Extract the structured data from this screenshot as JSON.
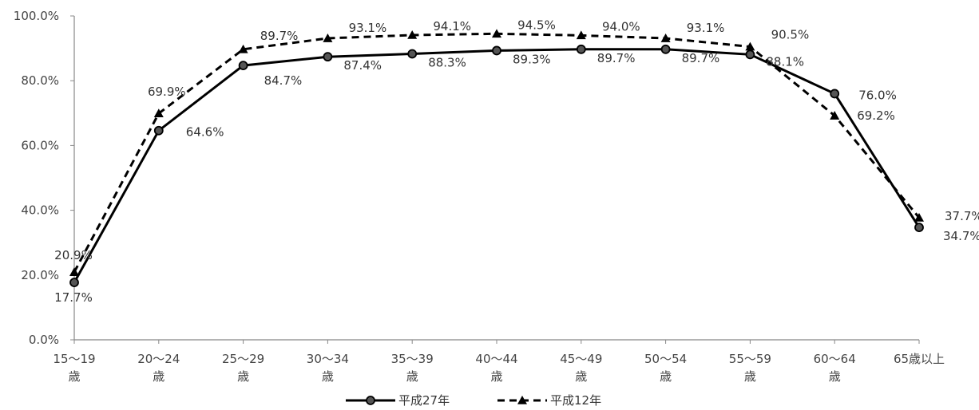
{
  "chart_data": {
    "type": "line",
    "categories": [
      [
        "15〜19",
        "歳"
      ],
      [
        "20〜24",
        "歳"
      ],
      [
        "25〜29",
        "歳"
      ],
      [
        "30〜34",
        "歳"
      ],
      [
        "35〜39",
        "歳"
      ],
      [
        "40〜44",
        "歳"
      ],
      [
        "45〜49",
        "歳"
      ],
      [
        "50〜54",
        "歳"
      ],
      [
        "55〜59",
        "歳"
      ],
      [
        "60〜64",
        "歳"
      ],
      [
        "65歳以上"
      ]
    ],
    "y_ticks": [
      "0.0%",
      "20.0%",
      "40.0%",
      "60.0%",
      "80.0%",
      "100.0%"
    ],
    "ylim": [
      0,
      100
    ],
    "grid": false,
    "legend_position": "bottom",
    "series": [
      {
        "name": "平成27年",
        "style": "solid",
        "marker": "circle",
        "color": "#000000",
        "values": [
          17.7,
          64.6,
          84.7,
          87.4,
          88.3,
          89.3,
          89.7,
          89.7,
          88.1,
          76.0,
          34.7
        ],
        "labels": [
          "17.7%",
          "64.6%",
          "84.7%",
          "87.4%",
          "88.3%",
          "89.3%",
          "89.7%",
          "89.7%",
          "88.1%",
          "76.0%",
          "34.7%"
        ]
      },
      {
        "name": "平成12年",
        "style": "dashed",
        "marker": "triangle",
        "color": "#000000",
        "values": [
          20.9,
          69.9,
          89.7,
          93.1,
          94.1,
          94.5,
          94.0,
          93.1,
          90.5,
          69.2,
          37.7
        ],
        "labels": [
          "20.9%",
          "69.9%",
          "89.7%",
          "93.1%",
          "94.1%",
          "94.5%",
          "94.0%",
          "93.1%",
          "90.5%",
          "69.2%",
          "37.7%"
        ]
      }
    ]
  }
}
